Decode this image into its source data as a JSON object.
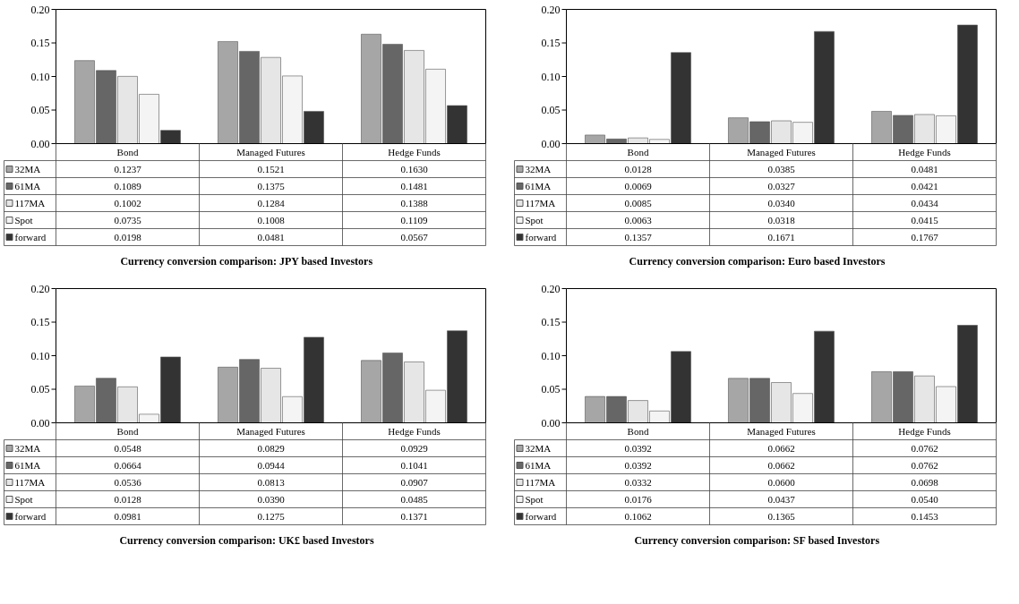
{
  "chart_data": [
    {
      "type": "bar",
      "title": "Currency conversion comparison: JPY based Investors",
      "categories": [
        "Bond",
        "Managed Futures",
        "Hedge Funds"
      ],
      "ylim": [
        0,
        0.2
      ],
      "yticks": [
        {
          "value": 0,
          "label": "0.00"
        },
        {
          "value": 0.05,
          "label": "0.05"
        },
        {
          "value": 0.1,
          "label": "0.10"
        },
        {
          "value": 0.15,
          "label": "0.15"
        },
        {
          "value": 0.2,
          "label": "0.20"
        }
      ],
      "legend": "bottom left",
      "series": [
        {
          "name": "32MA",
          "color": "#a6a6a6",
          "values": [
            0.1237,
            0.1521,
            0.163
          ],
          "value_labels": [
            "0.1237",
            "0.1521",
            "0.1630"
          ]
        },
        {
          "name": "61MA",
          "color": "#666666",
          "values": [
            0.1089,
            0.1375,
            0.1481
          ],
          "value_labels": [
            "0.1089",
            "0.1375",
            "0.1481"
          ]
        },
        {
          "name": "117MA",
          "color": "#e6e6e6",
          "values": [
            0.1002,
            0.1284,
            0.1388
          ],
          "value_labels": [
            "0.1002",
            "0.1284",
            "0.1388"
          ]
        },
        {
          "name": "Spot",
          "color": "#f4f4f4",
          "values": [
            0.0735,
            0.1008,
            0.1109
          ],
          "value_labels": [
            "0.0735",
            "0.1008",
            "0.1109"
          ]
        },
        {
          "name": "forward",
          "color": "#333333",
          "values": [
            0.0198,
            0.0481,
            0.0567
          ],
          "value_labels": [
            "0.0198",
            "0.0481",
            "0.0567"
          ]
        }
      ]
    },
    {
      "type": "bar",
      "title": "Currency conversion comparison: Euro based Investors",
      "categories": [
        "Bond",
        "Managed Futures",
        "Hedge Funds"
      ],
      "ylim": [
        0,
        0.2
      ],
      "yticks": [
        {
          "value": 0,
          "label": "0.00"
        },
        {
          "value": 0.05,
          "label": "0.05"
        },
        {
          "value": 0.1,
          "label": "0.10"
        },
        {
          "value": 0.15,
          "label": "0.15"
        },
        {
          "value": 0.2,
          "label": "0.20"
        }
      ],
      "legend": "bottom left",
      "series": [
        {
          "name": "32MA",
          "color": "#a6a6a6",
          "values": [
            0.0128,
            0.0385,
            0.0481
          ],
          "value_labels": [
            "0.0128",
            "0.0385",
            "0.0481"
          ]
        },
        {
          "name": "61MA",
          "color": "#666666",
          "values": [
            0.0069,
            0.0327,
            0.0421
          ],
          "value_labels": [
            "0.0069",
            "0.0327",
            "0.0421"
          ]
        },
        {
          "name": "117MA",
          "color": "#e6e6e6",
          "values": [
            0.0085,
            0.034,
            0.0434
          ],
          "value_labels": [
            "0.0085",
            "0.0340",
            "0.0434"
          ]
        },
        {
          "name": "Spot",
          "color": "#f4f4f4",
          "values": [
            0.0063,
            0.0318,
            0.0415
          ],
          "value_labels": [
            "0.0063",
            "0.0318",
            "0.0415"
          ]
        },
        {
          "name": "forward",
          "color": "#333333",
          "values": [
            0.1357,
            0.1671,
            0.1767
          ],
          "value_labels": [
            "0.1357",
            "0.1671",
            "0.1767"
          ]
        }
      ]
    },
    {
      "type": "bar",
      "title": "Currency conversion comparison: UK£ based Investors",
      "categories": [
        "Bond",
        "Managed Futures",
        "Hedge Funds"
      ],
      "ylim": [
        0,
        0.2
      ],
      "yticks": [
        {
          "value": 0,
          "label": "0.00"
        },
        {
          "value": 0.05,
          "label": "0.05"
        },
        {
          "value": 0.1,
          "label": "0.10"
        },
        {
          "value": 0.15,
          "label": "0.15"
        },
        {
          "value": 0.2,
          "label": "0.20"
        }
      ],
      "legend": "bottom left",
      "series": [
        {
          "name": "32MA",
          "color": "#a6a6a6",
          "values": [
            0.0548,
            0.0829,
            0.0929
          ],
          "value_labels": [
            "0.0548",
            "0.0829",
            "0.0929"
          ]
        },
        {
          "name": "61MA",
          "color": "#666666",
          "values": [
            0.0664,
            0.0944,
            0.1041
          ],
          "value_labels": [
            "0.0664",
            "0.0944",
            "0.1041"
          ]
        },
        {
          "name": "117MA",
          "color": "#e6e6e6",
          "values": [
            0.0536,
            0.0813,
            0.0907
          ],
          "value_labels": [
            "0.0536",
            "0.0813",
            "0.0907"
          ]
        },
        {
          "name": "Spot",
          "color": "#f4f4f4",
          "values": [
            0.0128,
            0.039,
            0.0485
          ],
          "value_labels": [
            "0.0128",
            "0.0390",
            "0.0485"
          ]
        },
        {
          "name": "forward",
          "color": "#333333",
          "values": [
            0.0981,
            0.1275,
            0.1371
          ],
          "value_labels": [
            "0.0981",
            "0.1275",
            "0.1371"
          ]
        }
      ]
    },
    {
      "type": "bar",
      "title": "Currency conversion comparison: SF based Investors",
      "categories": [
        "Bond",
        "Managed Futures",
        "Hedge Funds"
      ],
      "ylim": [
        0,
        0.2
      ],
      "yticks": [
        {
          "value": 0,
          "label": "0.00"
        },
        {
          "value": 0.05,
          "label": "0.05"
        },
        {
          "value": 0.1,
          "label": "0.10"
        },
        {
          "value": 0.15,
          "label": "0.15"
        },
        {
          "value": 0.2,
          "label": "0.20"
        }
      ],
      "legend": "bottom left",
      "series": [
        {
          "name": "32MA",
          "color": "#a6a6a6",
          "values": [
            0.0392,
            0.0662,
            0.0762
          ],
          "value_labels": [
            "0.0392",
            "0.0662",
            "0.0762"
          ]
        },
        {
          "name": "61MA",
          "color": "#666666",
          "values": [
            0.0392,
            0.0662,
            0.0762
          ],
          "value_labels": [
            "0.0392",
            "0.0662",
            "0.0762"
          ]
        },
        {
          "name": "117MA",
          "color": "#e6e6e6",
          "values": [
            0.0332,
            0.06,
            0.0698
          ],
          "value_labels": [
            "0.0332",
            "0.0600",
            "0.0698"
          ]
        },
        {
          "name": "Spot",
          "color": "#f4f4f4",
          "values": [
            0.0176,
            0.0437,
            0.054
          ],
          "value_labels": [
            "0.0176",
            "0.0437",
            "0.0540"
          ]
        },
        {
          "name": "forward",
          "color": "#333333",
          "values": [
            0.1062,
            0.1365,
            0.1453
          ],
          "value_labels": [
            "0.1062",
            "0.1365",
            "0.1453"
          ]
        }
      ]
    }
  ]
}
